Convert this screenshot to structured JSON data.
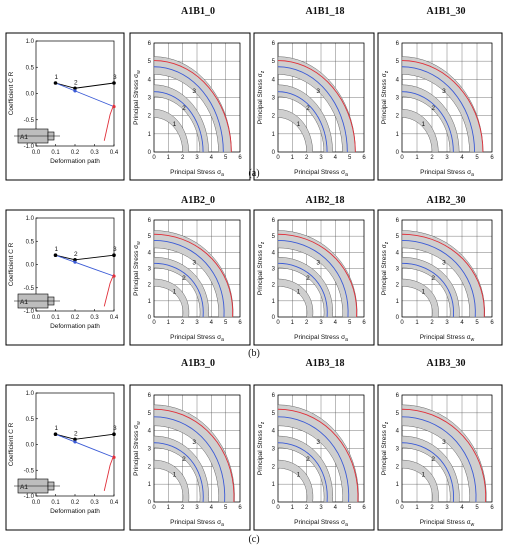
{
  "rows": [
    {
      "label": "(a)",
      "titles": [
        "A1B1_0",
        "A1B1_18",
        "A1B1_30"
      ],
      "path_plot": {
        "xlabel": "Deformation path",
        "ylabel": "Coefficient C",
        "ylabel_sub": "R",
        "xticks": [
          "0.0",
          "0.1",
          "0.2",
          "0.3",
          "0.4"
        ],
        "yticks": [
          "1.0",
          "0.5",
          "0.0",
          "-0.5",
          "-1.0"
        ],
        "points": [
          "1",
          "2",
          "3"
        ],
        "tag": "A1"
      },
      "loci": [
        {
          "ylabel": "Principal Stress σ",
          "ysub": "w",
          "xlabel": "Principal Stress σ",
          "xsub": "a"
        },
        {
          "ylabel": "Principal Stress σ",
          "ysub": "z",
          "xlabel": "Principal Stress σ",
          "xsub": "a"
        },
        {
          "ylabel": "Principal Stress σ",
          "ysub": "z",
          "xlabel": "Principal Stress σ",
          "xsub": "a"
        }
      ]
    },
    {
      "label": "(b)",
      "titles": [
        "A1B2_0",
        "A1B2_18",
        "A1B2_30"
      ],
      "path_plot": {
        "xlabel": "Deformation path",
        "ylabel": "Coefficient C",
        "ylabel_sub": "R",
        "xticks": [
          "0.0",
          "0.1",
          "0.2",
          "0.3",
          "0.4"
        ],
        "yticks": [
          "1.0",
          "0.5",
          "0.0",
          "-0.5",
          "-1.0"
        ],
        "points": [
          "1",
          "2",
          "3"
        ],
        "tag": "A1"
      },
      "loci": [
        {
          "ylabel": "Principal Stress σ",
          "ysub": "w",
          "xlabel": "Principal Stress σ",
          "xsub": "a"
        },
        {
          "ylabel": "Principal Stress σ",
          "ysub": "z",
          "xlabel": "Principal Stress σ",
          "xsub": "a"
        },
        {
          "ylabel": "Principal Stress σ",
          "ysub": "z",
          "xlabel": "Principal Stress σ",
          "xsub": "w"
        }
      ]
    },
    {
      "label": "(c)",
      "titles": [
        "A1B3_0",
        "A1B3_18",
        "A1B3_30"
      ],
      "path_plot": {
        "xlabel": "Deformation path",
        "ylabel": "Coefficient C",
        "ylabel_sub": "R",
        "xticks": [
          "0.0",
          "0.1",
          "0.2",
          "0.3",
          "0.4"
        ],
        "yticks": [
          "1.0",
          "0.5",
          "0.0",
          "-0.5",
          "-1.0"
        ],
        "points": [
          "1",
          "2",
          "3"
        ],
        "tag": "A1"
      },
      "loci": [
        {
          "ylabel": "Principal Stress σ",
          "ysub": "w",
          "xlabel": "Principal Stress σ",
          "xsub": "a"
        },
        {
          "ylabel": "Principal Stress σ",
          "ysub": "z",
          "xlabel": "Principal Stress σ",
          "xsub": "a"
        },
        {
          "ylabel": "Principal Stress σ",
          "ysub": "z",
          "xlabel": "Principal Stress σ",
          "xsub": "w"
        }
      ]
    }
  ],
  "chart_data": [
    {
      "type": "line",
      "xlabel": "Deformation path",
      "ylabel": "Coefficient C_R",
      "xlim": [
        0,
        0.4
      ],
      "ylim": [
        -1,
        1
      ],
      "series": [
        {
          "color": "#000000",
          "x": [
            0.1,
            0.2,
            0.4
          ],
          "y": [
            0.2,
            0.1,
            0.2
          ]
        },
        {
          "color": "#3b5bd6",
          "x": [
            0.1,
            0.2,
            0.3,
            0.4
          ],
          "y": [
            0.2,
            0.05,
            -0.1,
            -0.25
          ]
        },
        {
          "color": "#e0303a",
          "x": [
            0.35,
            0.38,
            0.4
          ],
          "y": [
            -0.9,
            -0.4,
            -0.2
          ]
        }
      ]
    },
    {
      "type": "line",
      "xlabel": "Principal Stress σa/σa0",
      "ylabel": "Principal Stress σw/σa0",
      "xlim": [
        0,
        6
      ],
      "ylim": [
        0,
        6
      ],
      "series": [
        {
          "name": "1",
          "color": "#666666",
          "radius": 2.0
        },
        {
          "name": "2",
          "color": "#666666",
          "radius": 3.2
        },
        {
          "name": "3",
          "color": "#666666",
          "radius": 4.5
        }
      ]
    }
  ],
  "colors": {
    "gray_band": "#cfcfcf",
    "red": "#e0303a",
    "blue": "#3b5bd6",
    "frame": "#000000"
  }
}
